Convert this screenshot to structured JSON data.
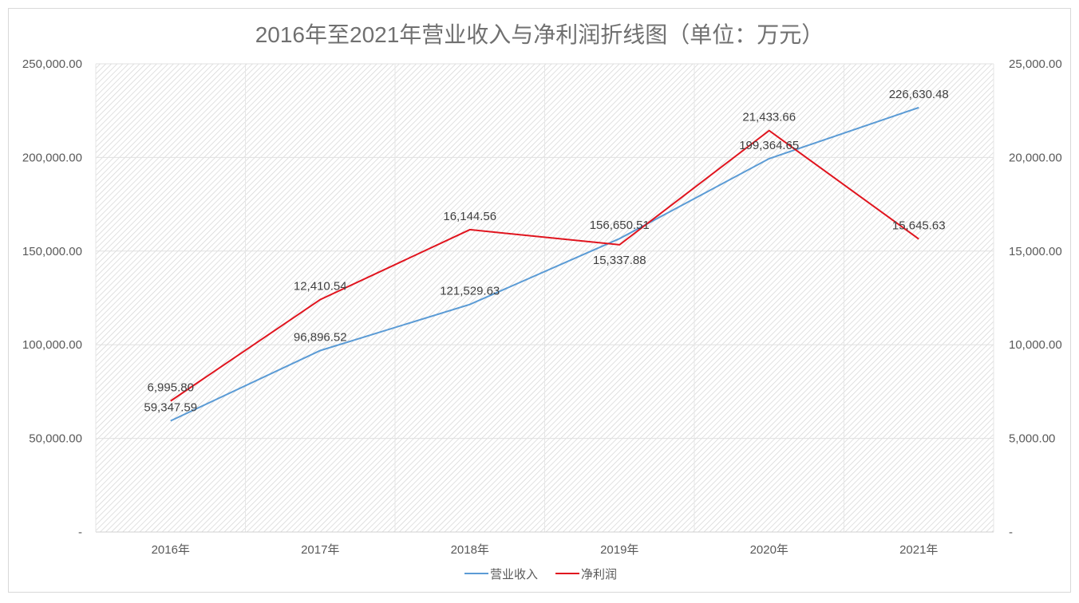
{
  "chart_data": {
    "type": "line",
    "title": "2016年至2021年营业收入与净利润折线图（单位：万元）",
    "categories": [
      "2016年",
      "2017年",
      "2018年",
      "2019年",
      "2020年",
      "2021年"
    ],
    "series": [
      {
        "name": "营业收入",
        "axis": "left",
        "color": "#5b9bd5",
        "values": [
          59347.59,
          96896.52,
          121529.63,
          156650.51,
          199364.65,
          226630.48
        ],
        "labels": [
          "59,347.59",
          "96,896.52",
          "121,529.63",
          "156,650.51",
          "199,364.65",
          "226,630.48"
        ]
      },
      {
        "name": "净利润",
        "axis": "right",
        "color": "#e0141e",
        "values": [
          6995.8,
          12410.54,
          16144.56,
          15337.88,
          21433.66,
          15645.63
        ],
        "labels": [
          "6,995.80",
          "12,410.54",
          "16,144.56",
          "15,337.88",
          "21,433.66",
          "15,645.63"
        ]
      }
    ],
    "y_left": {
      "ylim": [
        0,
        250000
      ],
      "ticks": [
        "-",
        "50,000.00",
        "100,000.00",
        "150,000.00",
        "200,000.00",
        "250,000.00"
      ]
    },
    "y_right": {
      "ylim": [
        0,
        25000
      ],
      "ticks": [
        "-",
        "5,000.00",
        "10,000.00",
        "15,000.00",
        "20,000.00",
        "25,000.00"
      ]
    },
    "grid": true,
    "legend": "bottom"
  }
}
